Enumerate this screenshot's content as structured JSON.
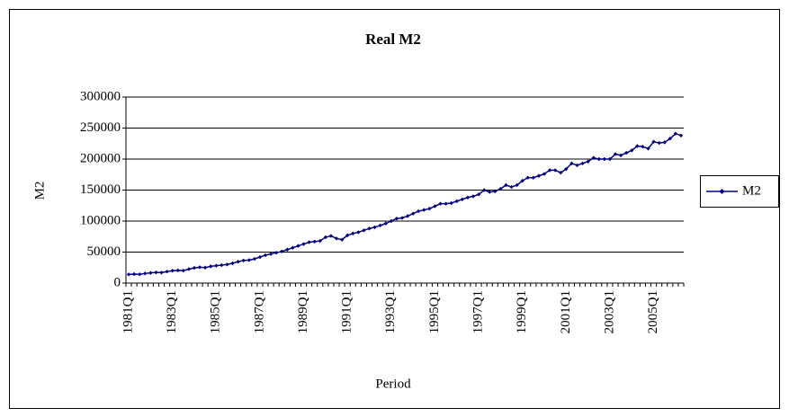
{
  "chart_data": {
    "type": "line",
    "title": "Real M2",
    "x_label": "Period",
    "y_label": "M2",
    "categories": [
      "1981Q1",
      null,
      null,
      null,
      null,
      null,
      null,
      null,
      "1983Q1",
      null,
      null,
      null,
      null,
      null,
      null,
      null,
      "1985Q1",
      null,
      null,
      null,
      null,
      null,
      null,
      null,
      "1987Q1",
      null,
      null,
      null,
      null,
      null,
      null,
      null,
      "1989Q1",
      null,
      null,
      null,
      null,
      null,
      null,
      null,
      "1991Q1",
      null,
      null,
      null,
      null,
      null,
      null,
      null,
      "1993Q1",
      null,
      null,
      null,
      null,
      null,
      null,
      null,
      "1995Q1",
      null,
      null,
      null,
      null,
      null,
      null,
      null,
      "1997Q1",
      null,
      null,
      null,
      null,
      null,
      null,
      null,
      "1999Q1",
      null,
      null,
      null,
      null,
      null,
      null,
      null,
      "2001Q1",
      null,
      null,
      null,
      null,
      null,
      null,
      null,
      "2003Q1",
      null,
      null,
      null,
      null,
      null,
      null,
      null,
      "2005Q1",
      null,
      null,
      null,
      null,
      null
    ],
    "series": [
      {
        "name": "M2",
        "color": "#000080",
        "values": [
          14000,
          14500,
          14200,
          15500,
          16500,
          17200,
          17000,
          18500,
          20000,
          20500,
          20200,
          22500,
          24500,
          25500,
          25000,
          27000,
          28000,
          29000,
          30000,
          32000,
          34500,
          36500,
          37000,
          39000,
          42000,
          45000,
          47000,
          49000,
          51000,
          54000,
          57000,
          60000,
          63000,
          66000,
          67000,
          68000,
          74000,
          76000,
          72000,
          70000,
          77000,
          80000,
          82000,
          85000,
          88000,
          90000,
          93000,
          96000,
          100000,
          104000,
          105000,
          108000,
          112000,
          116000,
          118000,
          120000,
          124000,
          128000,
          128000,
          129000,
          132000,
          135000,
          138000,
          140000,
          143000,
          150000,
          147000,
          148000,
          152000,
          158000,
          155000,
          158000,
          165000,
          170000,
          170000,
          173000,
          176000,
          182000,
          182000,
          178000,
          184000,
          193000,
          190000,
          193000,
          196000,
          202000,
          200000,
          200000,
          200000,
          208000,
          206000,
          210000,
          214000,
          221000,
          220000,
          217000,
          228000,
          226000,
          227000,
          233000,
          241000,
          238000
        ]
      }
    ],
    "ylim": [
      0,
      300000
    ],
    "yticks": [
      0,
      50000,
      100000,
      150000,
      200000,
      250000,
      300000
    ],
    "grid": true,
    "legend": "right"
  }
}
